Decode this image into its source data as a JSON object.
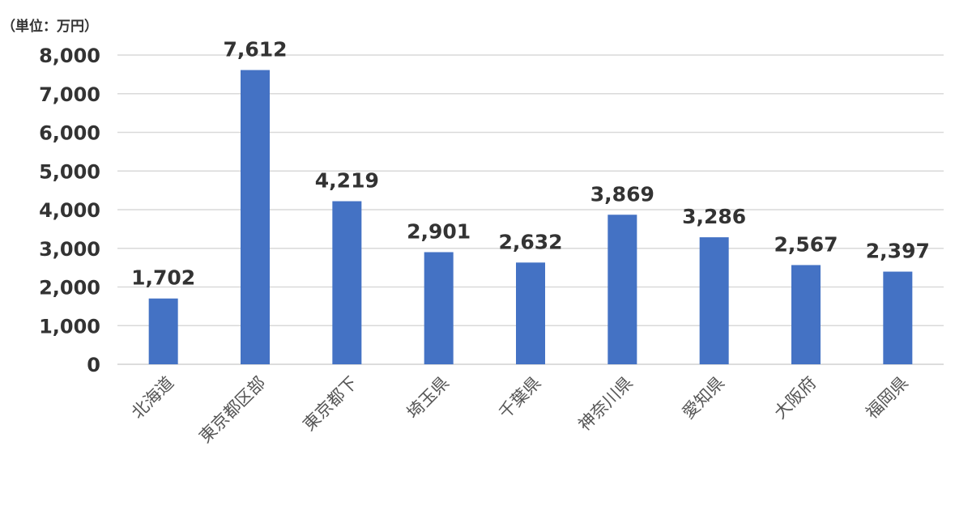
{
  "chart_data": {
    "type": "bar",
    "unit_label": "（単位：万円）",
    "categories": [
      "北海道",
      "東京都区部",
      "東京都下",
      "埼玉県",
      "千葉県",
      "神奈川県",
      "愛知県",
      "大阪府",
      "福岡県"
    ],
    "values": [
      1702,
      7612,
      4219,
      2901,
      2632,
      3869,
      3286,
      2567,
      2397
    ],
    "data_labels": [
      "1,702",
      "7,612",
      "4,219",
      "2,901",
      "2,632",
      "3,869",
      "3,286",
      "2,567",
      "2,397"
    ],
    "y_ticks": [
      0,
      1000,
      2000,
      3000,
      4000,
      5000,
      6000,
      7000,
      8000
    ],
    "y_tick_labels": [
      "0",
      "1,000",
      "2,000",
      "3,000",
      "4,000",
      "5,000",
      "6,000",
      "7,000",
      "8,000"
    ],
    "ylim": [
      0,
      8000
    ],
    "grid": true,
    "legend": "none",
    "bar_color": "#4472c4"
  }
}
